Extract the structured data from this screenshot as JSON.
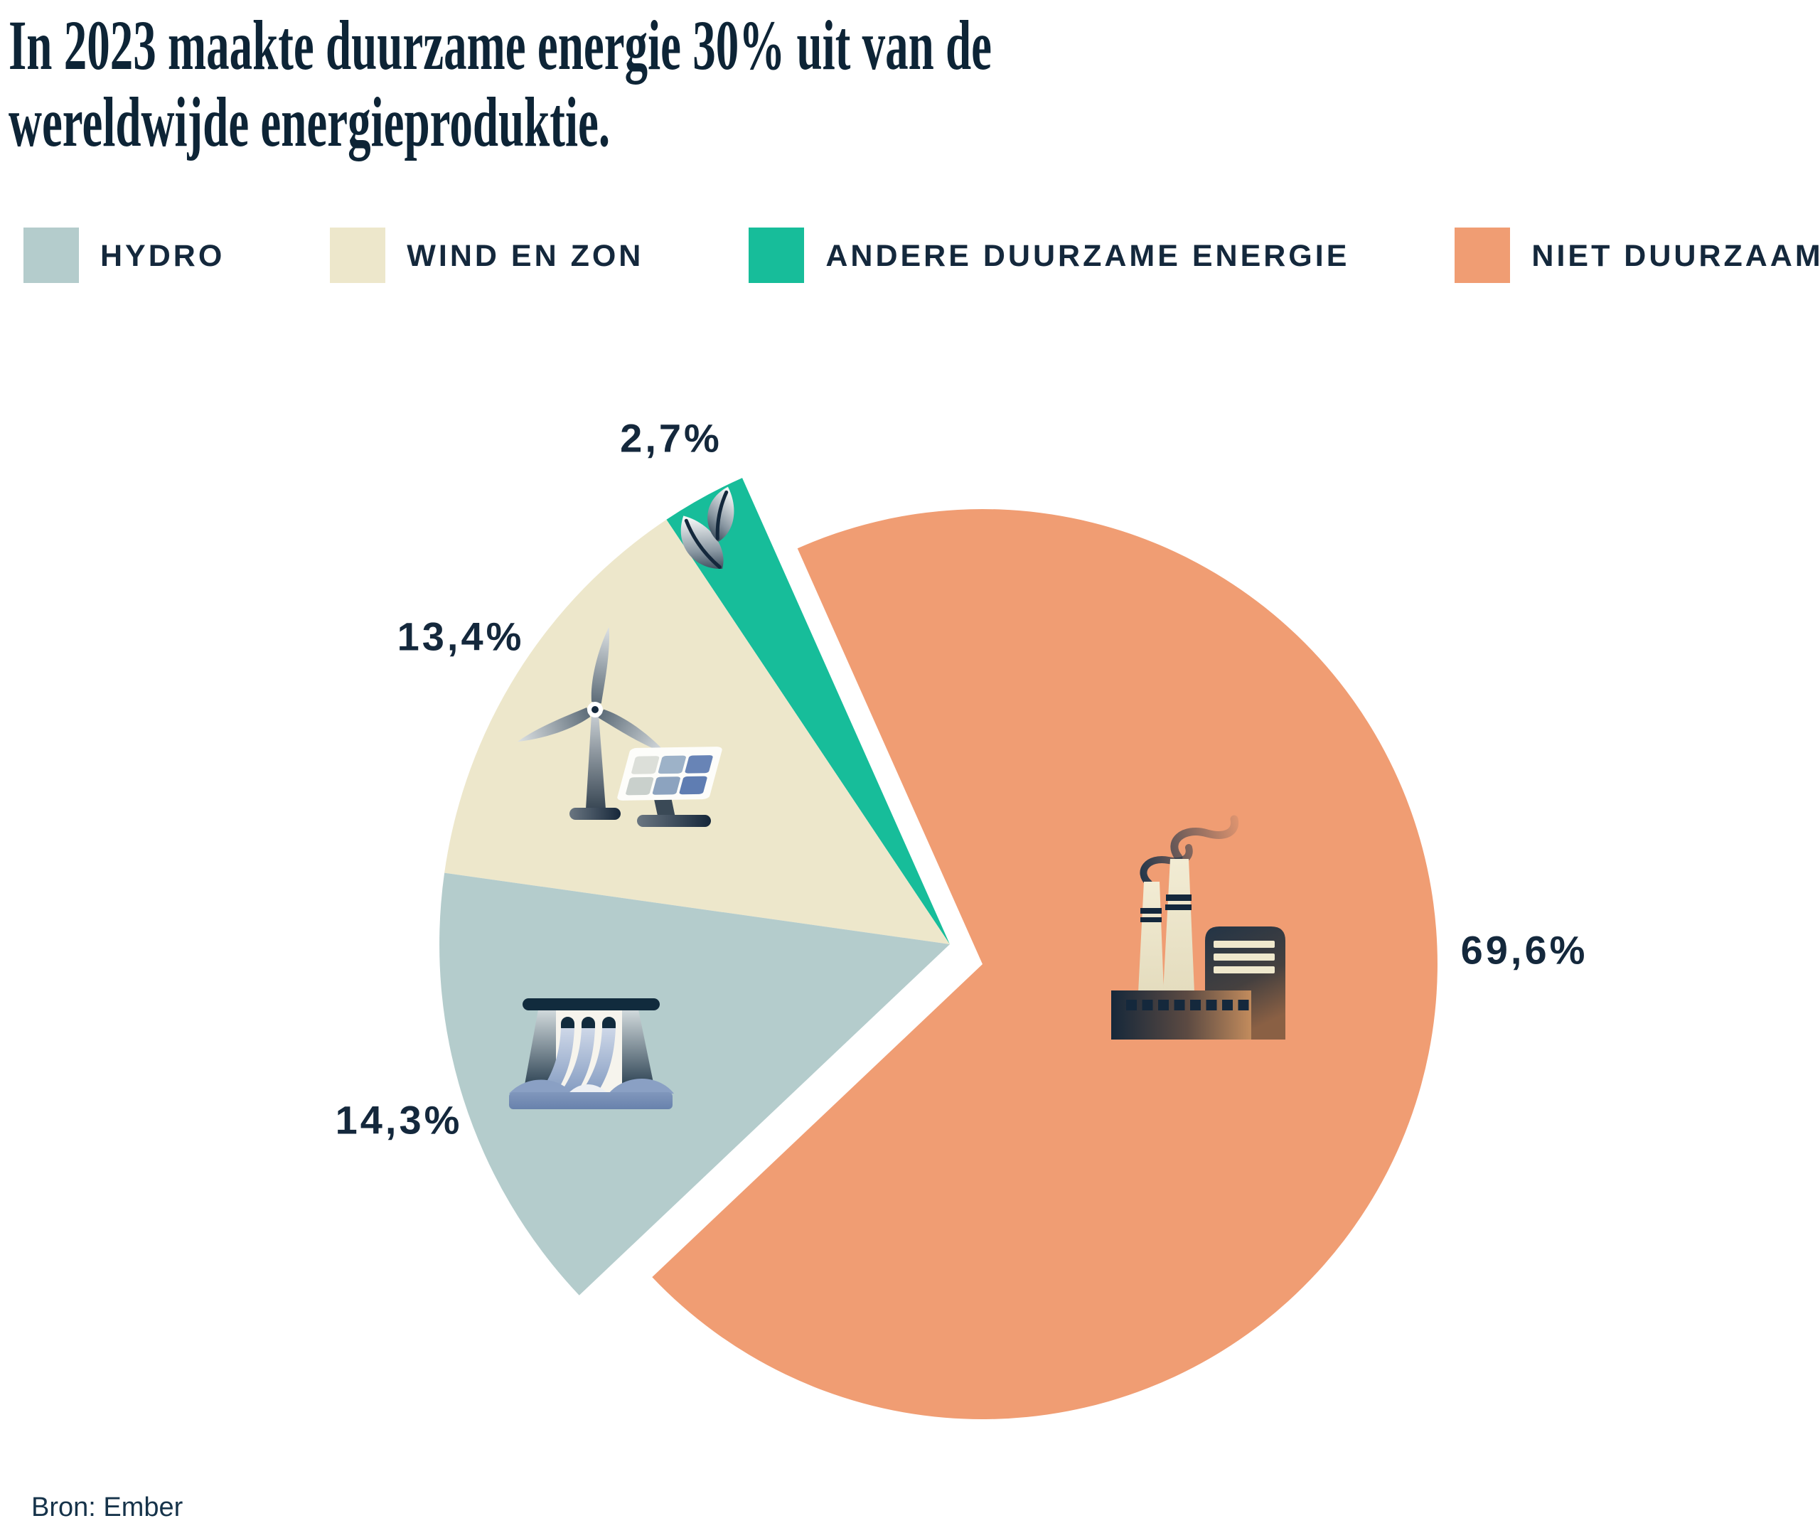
{
  "title": {
    "line1": "In 2023 maakte duurzame energie 30% uit van de",
    "line2": "wereldwijde energieproduktie."
  },
  "source": "Bron: Ember",
  "colors": {
    "background": "#FFFFFF",
    "text_navy": "#14283C",
    "title_navy": "#0D2436",
    "hydro": "#B4CCCC",
    "wind_solar": "#EDE7CB",
    "other_renewable": "#17BD9A",
    "non_renewable": "#F09D73"
  },
  "chart_data": {
    "type": "pie",
    "title": "In 2023 maakte duurzame energie 30% uit van de wereldwijde energieproduktie.",
    "unit": "%",
    "total": 100,
    "decimal_separator": ",",
    "legend_position": "top",
    "slices": [
      {
        "label": "Hydro",
        "legend": "HYDRO",
        "value": 14.3,
        "display": "14,3%",
        "color": "#B4CCCC",
        "icon": "dam-icon"
      },
      {
        "label": "Wind en zon",
        "legend": "WIND EN ZON",
        "value": 13.4,
        "display": "13,4%",
        "color": "#EDE7CB",
        "icon": "wind-turbine-solar-panel-icon"
      },
      {
        "label": "Andere duurzame energie",
        "legend": "ANDERE DUURZAME ENERGIE",
        "value": 2.7,
        "display": "2,7%",
        "color": "#17BD9A",
        "icon": "leaf-icon"
      },
      {
        "label": "Niet duurzaam",
        "legend": "NIET DUURZAAM",
        "value": 69.6,
        "display": "69,6%",
        "color": "#F09D73",
        "icon": "factory-icon"
      }
    ]
  }
}
